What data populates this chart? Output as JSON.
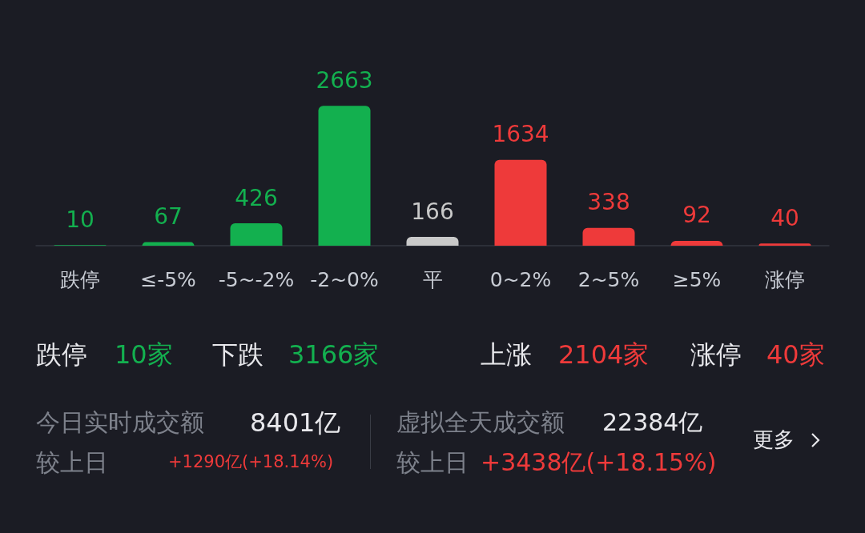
{
  "chart_data": {
    "type": "bar",
    "categories": [
      "跌停",
      "≤-5%",
      "-5~-2%",
      "-2~0%",
      "平",
      "0~2%",
      "2~5%",
      "≥5%",
      "涨停"
    ],
    "values": [
      10,
      67,
      426,
      2663,
      166,
      1634,
      338,
      92,
      40
    ],
    "colors": [
      "#13b04f",
      "#13b04f",
      "#13b04f",
      "#13b04f",
      "#c9c9c9",
      "#ee3a3a",
      "#ee3a3a",
      "#ee3a3a",
      "#ee3a3a"
    ],
    "data_labels": true,
    "annotations": [
      "跌停",
      "10家",
      "下跌",
      "3166家",
      "上涨",
      "2104家",
      "涨停",
      "40家",
      "今日实时成交额",
      "8401亿",
      "较上日",
      "+1290亿(+18.14%)",
      "虚拟全天成交额",
      "22384亿",
      "较上日",
      "+3438亿(+18.15%)",
      "更多"
    ]
  }
}
